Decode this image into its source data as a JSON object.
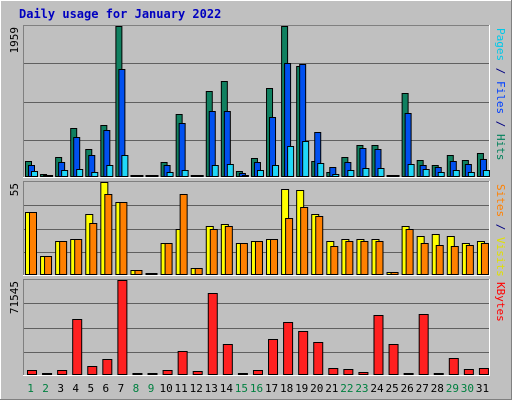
{
  "chart_data": {
    "title": "Daily usage for January 2022",
    "x": [
      "1",
      "2",
      "3",
      "4",
      "5",
      "6",
      "7",
      "8",
      "9",
      "10",
      "11",
      "12",
      "13",
      "14",
      "15",
      "16",
      "17",
      "18",
      "19",
      "20",
      "21",
      "22",
      "23",
      "24",
      "25",
      "26",
      "27",
      "28",
      "29",
      "30",
      "31"
    ],
    "weekend_days": [
      "1",
      "2",
      "8",
      "9",
      "15",
      "16",
      "22",
      "23",
      "29",
      "30"
    ],
    "panels": [
      {
        "id": "hits-files-pages",
        "type": "bar",
        "ymax_label": "1959",
        "ymax": 1959,
        "side_labels": [
          {
            "text": "Pages",
            "color": "#00c8e8"
          },
          {
            "text": " / ",
            "color": "#000080"
          },
          {
            "text": "Files",
            "color": "#0040ff"
          },
          {
            "text": " / ",
            "color": "#000080"
          },
          {
            "text": "Hits",
            "color": "#00805a"
          }
        ],
        "series": [
          {
            "name": "Hits",
            "color": "#108060",
            "values": [
              210,
              40,
              260,
              630,
              360,
              680,
              1959,
              15,
              0,
              200,
              820,
              20,
              1110,
              1250,
              80,
              250,
              1150,
              1959,
              1440,
              210,
              60,
              260,
              420,
              410,
              20,
              1090,
              220,
              160,
              290,
              220,
              310
            ]
          },
          {
            "name": "Files",
            "color": "#0050f0",
            "values": [
              160,
              30,
              200,
              520,
              280,
              610,
              1400,
              10,
              0,
              150,
              700,
              15,
              850,
              850,
              50,
              200,
              780,
              1480,
              1470,
              580,
              130,
              200,
              370,
              360,
              15,
              830,
              160,
              130,
              210,
              170,
              240
            ]
          },
          {
            "name": "Pages",
            "color": "#20d8f8",
            "values": [
              80,
              10,
              90,
              100,
              60,
              150,
              280,
              5,
              0,
              60,
              90,
              10,
              150,
              170,
              20,
              90,
              150,
              400,
              470,
              180,
              40,
              90,
              120,
              120,
              10,
              170,
              100,
              70,
              90,
              70,
              90
            ]
          }
        ]
      },
      {
        "id": "visits-sites",
        "type": "bar",
        "ymax_label": "55",
        "ymax": 55,
        "side_labels": [
          {
            "text": "Sites",
            "color": "#ff8000"
          },
          {
            "text": " / ",
            "color": "#000080"
          },
          {
            "text": "Visits",
            "color": "#e0e000"
          }
        ],
        "series": [
          {
            "name": "Visits",
            "color": "#ffff00",
            "values": [
              37,
              11,
              20,
              21,
              36,
              55,
              43,
              3,
              0,
              19,
              27,
              4,
              29,
              30,
              19,
              20,
              21,
              51,
              50,
              36,
              20,
              21,
              21,
              21,
              2,
              29,
              23,
              24,
              23,
              19,
              20
            ]
          },
          {
            "name": "Sites",
            "color": "#ff8000",
            "values": [
              37,
              11,
              20,
              21,
              31,
              48,
              43,
              3,
              0,
              19,
              48,
              4,
              27,
              29,
              19,
              20,
              21,
              34,
              40,
              35,
              17,
              20,
              20,
              20,
              2,
              27,
              19,
              18,
              17,
              18,
              19
            ]
          }
        ]
      },
      {
        "id": "kbytes",
        "type": "bar",
        "ymax_label": "71545",
        "ymax": 71545,
        "side_labels": [
          {
            "text": "KBytes",
            "color": "#ff0000"
          }
        ],
        "series": [
          {
            "name": "KBytes",
            "color": "#ff2020",
            "values": [
              3500,
              0,
              4000,
              42000,
              7000,
              12000,
              71545,
              0,
              0,
              3500,
              18000,
              3000,
              62000,
              23500,
              0,
              3500,
              27000,
              40000,
              33000,
              25000,
              5000,
              4500,
              2000,
              45000,
              23000,
              0,
              46000,
              0,
              12500,
              4500,
              5000
            ]
          }
        ]
      }
    ]
  }
}
